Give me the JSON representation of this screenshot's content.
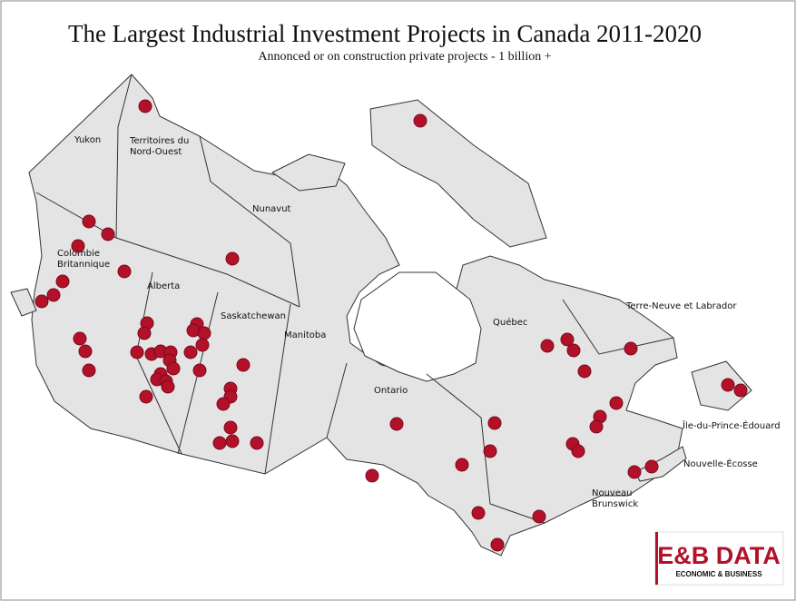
{
  "title": "The Largest Industrial Investment Projects in Canada 2011-2020",
  "subtitle": "Annonced or on construction private projects  - 1 billion  +",
  "regions": [
    [
      "Yukon"
    ],
    [
      "Territoires du",
      "Nord-Ouest"
    ],
    [
      "Nunavut"
    ],
    [
      "Colombie",
      "Britannique"
    ],
    [
      "Alberta"
    ],
    [
      "Saskatchewan"
    ],
    [
      "Manitoba"
    ],
    [
      "Ontario"
    ],
    [
      "Québec"
    ],
    [
      "Terre-Neuve et Labrador"
    ],
    [
      "Île-du-Prince-Édouard"
    ],
    [
      "Nouvelle-Écosse"
    ],
    [
      "Nouveau",
      "Brunswick"
    ]
  ],
  "logo": {
    "brand": "E&B DATA",
    "tagline": "ECONOMIC & BUSINESS"
  }
}
